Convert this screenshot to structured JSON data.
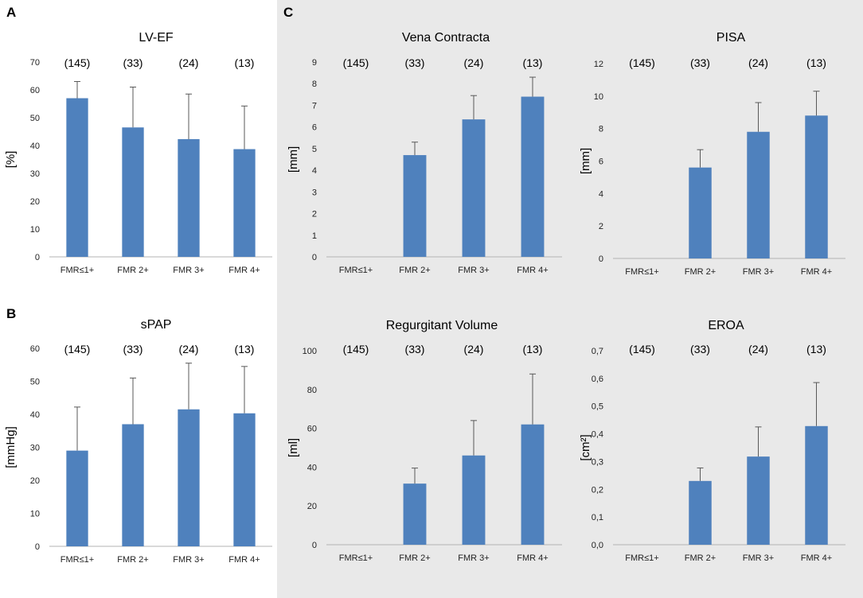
{
  "panels": {
    "a": "A",
    "b": "B",
    "c": "C"
  },
  "colors": {
    "bar": "#4f81bd",
    "error": "#595959",
    "axis": "#b3b3b3",
    "panel_c_bg": "#e9e9e9"
  },
  "chart_data": [
    {
      "id": "lvef",
      "type": "bar",
      "title": "LV-EF",
      "ylabel": "[%]",
      "ylim": [
        0,
        70
      ],
      "ticks": [
        0,
        10,
        20,
        30,
        40,
        50,
        60,
        70
      ],
      "categories": [
        "FMR≤1+",
        "FMR 2+",
        "FMR 3+",
        "FMR 4+"
      ],
      "counts": [
        "(145)",
        "(33)",
        "(24)",
        "(13)"
      ],
      "values": [
        57,
        46.5,
        42.3,
        38.7
      ],
      "error": [
        63,
        61,
        58.5,
        54.2
      ]
    },
    {
      "id": "spap",
      "type": "bar",
      "title": "sPAP",
      "ylabel": "[mmHg]",
      "ylim": [
        0,
        60
      ],
      "ticks": [
        0,
        10,
        20,
        30,
        40,
        50,
        60
      ],
      "categories": [
        "FMR≤1+",
        "FMR 2+",
        "FMR 3+",
        "FMR 4+"
      ],
      "counts": [
        "(145)",
        "(33)",
        "(24)",
        "(13)"
      ],
      "values": [
        29,
        37,
        41.5,
        40.3
      ],
      "error": [
        42.2,
        51,
        55.5,
        54.5
      ]
    },
    {
      "id": "vc",
      "type": "bar",
      "title": "Vena Contracta",
      "ylabel": "[mm]",
      "ylim": [
        0,
        9
      ],
      "ticks": [
        0,
        1,
        2,
        3,
        4,
        5,
        6,
        7,
        8,
        9
      ],
      "categories": [
        "FMR≤1+",
        "FMR 2+",
        "FMR 3+",
        "FMR 4+"
      ],
      "counts": [
        "(145)",
        "(33)",
        "(24)",
        "(13)"
      ],
      "values": [
        null,
        4.7,
        6.35,
        7.4
      ],
      "error": [
        null,
        5.3,
        7.45,
        8.3
      ]
    },
    {
      "id": "pisa",
      "type": "bar",
      "title": "PISA",
      "ylabel": "[mm]",
      "ylim": [
        0,
        12
      ],
      "ticks": [
        0,
        2,
        4,
        6,
        8,
        10,
        12
      ],
      "categories": [
        "FMR≤1+",
        "FMR 2+",
        "FMR 3+",
        "FMR 4+"
      ],
      "counts": [
        "(145)",
        "(33)",
        "(24)",
        "(13)"
      ],
      "values": [
        null,
        5.6,
        7.8,
        8.8
      ],
      "error": [
        null,
        6.7,
        9.6,
        10.3
      ]
    },
    {
      "id": "rvol",
      "type": "bar",
      "title": "Regurgitant Volume",
      "ylabel": "[ml]",
      "ylim": [
        0,
        100
      ],
      "ticks": [
        0,
        20,
        40,
        60,
        80,
        100
      ],
      "categories": [
        "FMR≤1+",
        "FMR 2+",
        "FMR 3+",
        "FMR 4+"
      ],
      "counts": [
        "(145)",
        "(33)",
        "(24)",
        "(13)"
      ],
      "values": [
        null,
        31.5,
        46,
        62
      ],
      "error": [
        null,
        39.5,
        64,
        88
      ]
    },
    {
      "id": "eroa",
      "type": "bar",
      "title": "EROA",
      "ylabel": "[cm²]",
      "ylim": [
        0,
        0.7
      ],
      "ticks": [
        "0,0",
        "0,1",
        "0,2",
        "0,3",
        "0,4",
        "0,5",
        "0,6",
        "0,7"
      ],
      "categories": [
        "FMR≤1+",
        "FMR 2+",
        "FMR 3+",
        "FMR 4+"
      ],
      "counts": [
        "(145)",
        "(33)",
        "(24)",
        "(13)"
      ],
      "values": [
        null,
        0.23,
        0.318,
        0.428
      ],
      "error": [
        null,
        0.277,
        0.425,
        0.585
      ]
    }
  ]
}
